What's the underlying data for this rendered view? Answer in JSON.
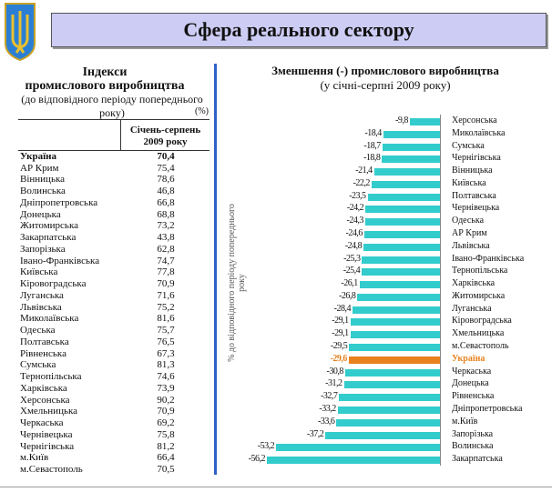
{
  "header": {
    "title": "Сфера реального сектору"
  },
  "left": {
    "title1": "Індекси",
    "title2": "промислового виробництва",
    "subtitle": "(до відповідного періоду попереднього року)",
    "unit": "(%)",
    "column_header_1": "Січень-серпень",
    "column_header_2": "2009 року",
    "rows": [
      {
        "name": "Україна",
        "value": "70,4"
      },
      {
        "name": "АР Крим",
        "value": "75,4"
      },
      {
        "name": "Вінницька",
        "value": "78,6"
      },
      {
        "name": "Волинська",
        "value": "46,8"
      },
      {
        "name": "Дніпропетровська",
        "value": "66,8"
      },
      {
        "name": "Донецька",
        "value": "68,8"
      },
      {
        "name": "Житомирська",
        "value": "73,2"
      },
      {
        "name": "Закарпатська",
        "value": "43,8"
      },
      {
        "name": "Запорізька",
        "value": "62,8"
      },
      {
        "name": "Івано-Франківська",
        "value": "74,7"
      },
      {
        "name": "Київська",
        "value": "77,8"
      },
      {
        "name": "Кіровоградська",
        "value": "70,9"
      },
      {
        "name": "Луганська",
        "value": "71,6"
      },
      {
        "name": "Львівська",
        "value": "75,2"
      },
      {
        "name": "Миколаївська",
        "value": "81,6"
      },
      {
        "name": "Одеська",
        "value": "75,7"
      },
      {
        "name": "Полтавська",
        "value": "76,5"
      },
      {
        "name": "Рівненська",
        "value": "67,3"
      },
      {
        "name": "Сумська",
        "value": "81,3"
      },
      {
        "name": "Тернопільська",
        "value": "74,6"
      },
      {
        "name": "Харківська",
        "value": "73,9"
      },
      {
        "name": "Херсонська",
        "value": "90,2"
      },
      {
        "name": "Хмельницька",
        "value": "70,9"
      },
      {
        "name": "Черкаська",
        "value": "69,2"
      },
      {
        "name": "Чернівецька",
        "value": "75,8"
      },
      {
        "name": "Чернігівська",
        "value": "81,2"
      },
      {
        "name": "м.Київ",
        "value": "66,4"
      },
      {
        "name": "м.Севастополь",
        "value": "70,5"
      }
    ]
  },
  "chart_data": {
    "type": "bar",
    "orientation": "horizontal",
    "title": "Зменшення (-) промислового виробництва",
    "subtitle": "(у січні-серпні 2009 року)",
    "ylabel": "% до відповідного періоду попереднього року",
    "xlim": [
      -60,
      0
    ],
    "highlight": "Україна",
    "colors": {
      "bar": "#33cccc",
      "highlight": "#e8821e"
    },
    "categories": [
      "Херсонська",
      "Миколаївська",
      "Сумська",
      "Чернігівська",
      "Вінницька",
      "Київська",
      "Полтавська",
      "Чернівецька",
      "Одеська",
      "АР Крим",
      "Львівська",
      "Івано-Франківська",
      "Тернопільська",
      "Харківська",
      "Житомирська",
      "Луганська",
      "Кіровоградська",
      "Хмельницька",
      "м.Севастополь",
      "Україна",
      "Черкаська",
      "Донецька",
      "Рівненська",
      "Дніпропетровська",
      "м.Київ",
      "Запорізька",
      "Волинська",
      "Закарпатська"
    ],
    "values": [
      -9.8,
      -18.4,
      -18.7,
      -18.8,
      -21.4,
      -22.2,
      -23.5,
      -24.2,
      -24.3,
      -24.6,
      -24.8,
      -25.3,
      -25.4,
      -26.1,
      -26.8,
      -28.4,
      -29.1,
      -29.1,
      -29.5,
      -29.6,
      -30.8,
      -31.2,
      -32.7,
      -33.2,
      -33.6,
      -37.2,
      -53.2,
      -56.2
    ],
    "labels": [
      "-9,8",
      "-18,4",
      "-18,7",
      "-18,8",
      "-21,4",
      "-22,2",
      "-23,5",
      "-24,2",
      "-24,3",
      "-24,6",
      "-24,8",
      "-25,3",
      "-25,4",
      "-26,1",
      "-26,8",
      "-28,4",
      "-29,1",
      "-29,1",
      "-29,5",
      "-29,6",
      "-30,8",
      "-31,2",
      "-32,7",
      "-33,2",
      "-33,6",
      "-37,2",
      "-53,2",
      "-56,2"
    ]
  }
}
